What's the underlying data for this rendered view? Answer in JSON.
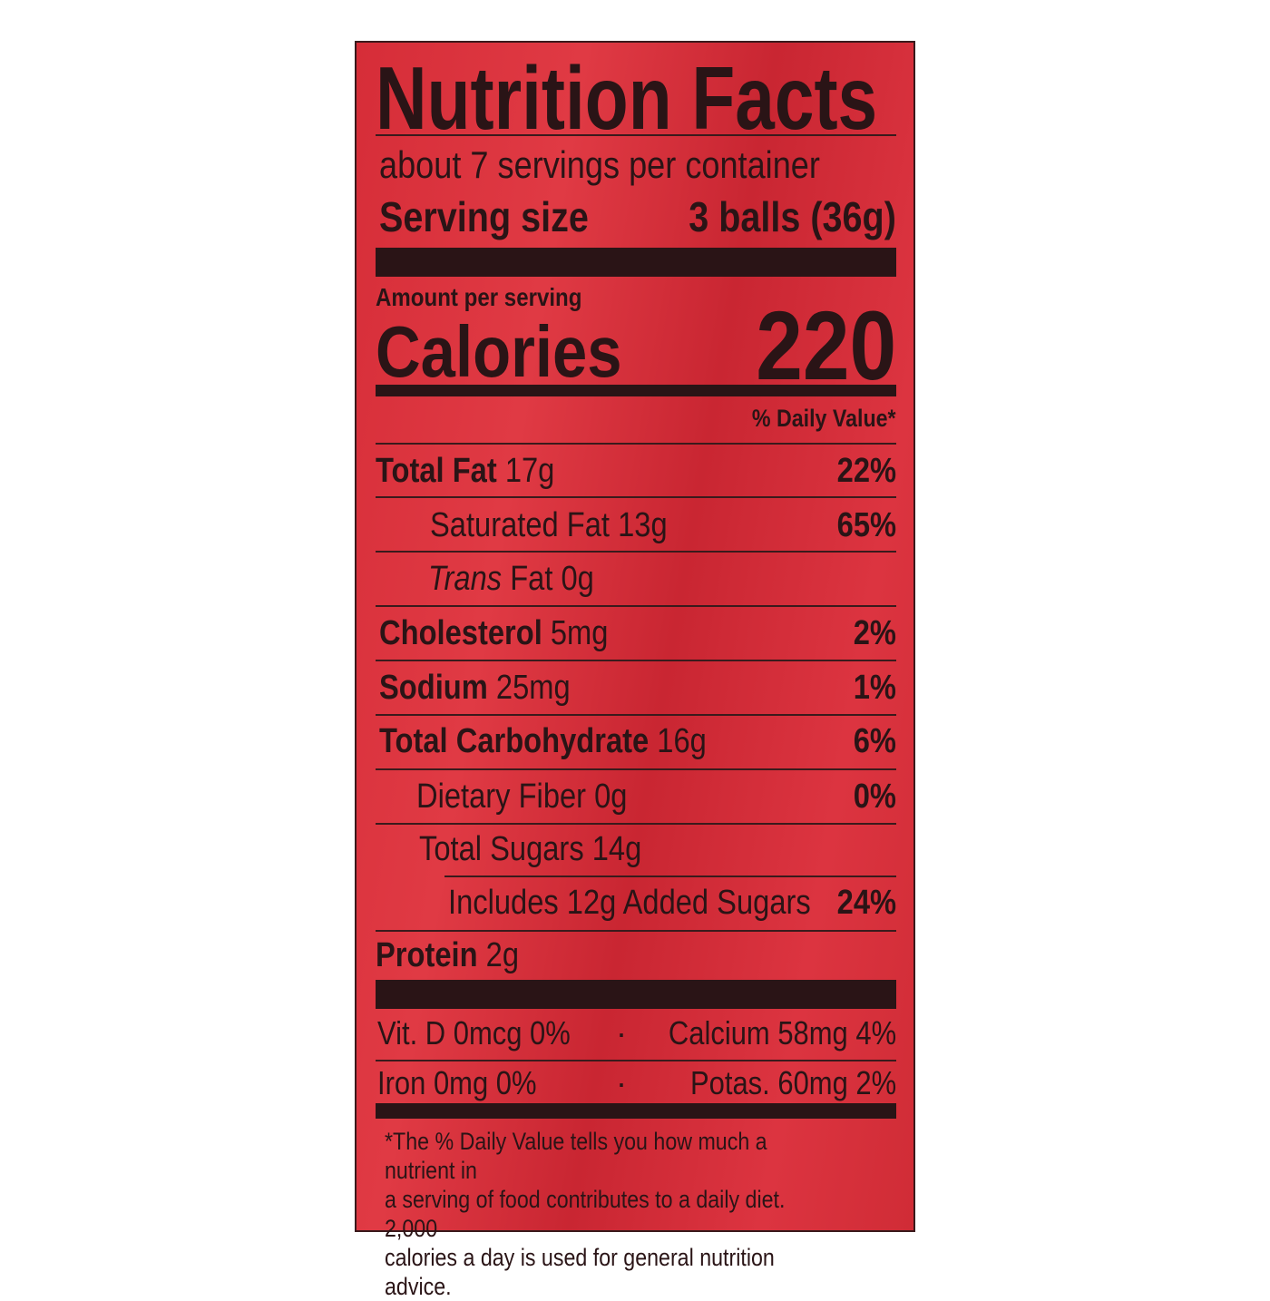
{
  "title": "Nutrition Facts",
  "servings_per_container": "about 7 servings per container",
  "serving_size": {
    "label": "Serving size",
    "value": "3 balls (36g)"
  },
  "amount_per_serving": "Amount per serving",
  "calories": {
    "label": "Calories",
    "value": "220"
  },
  "daily_value_header": "% Daily Value*",
  "nutrients": [
    {
      "name": "Total Fat",
      "amount": "17g",
      "dv": "22%"
    },
    {
      "name": "Saturated Fat",
      "amount": "13g",
      "dv": "65%"
    },
    {
      "name": "Trans",
      "name_suffix": "Fat",
      "amount": "0g",
      "dv": ""
    },
    {
      "name": "Cholesterol",
      "amount": "5mg",
      "dv": "2%"
    },
    {
      "name": "Sodium",
      "amount": "25mg",
      "dv": "1%"
    },
    {
      "name": "Total Carbohydrate",
      "amount": "16g",
      "dv": "6%"
    },
    {
      "name": "Dietary Fiber",
      "amount": "0g",
      "dv": "0%"
    },
    {
      "name": "Total Sugars",
      "amount": "14g",
      "dv": ""
    },
    {
      "name": "Includes 12g Added Sugars",
      "amount": "",
      "dv": "24%"
    },
    {
      "name": "Protein",
      "amount": "2g",
      "dv": ""
    }
  ],
  "micronutrients": [
    {
      "left": "Vit. D 0mcg 0%",
      "right": "Calcium 58mg 4%"
    },
    {
      "left": "Iron 0mg 0%",
      "right": "Potas. 60mg 2%"
    }
  ],
  "separator": "·",
  "footnote": [
    "*The % Daily Value tells you how much a nutrient in",
    "a serving of food contributes to a daily diet. 2,000",
    "calories a day is used for general nutrition advice."
  ],
  "colors": {
    "label_red": "#d62d38",
    "ink": "#2a1416"
  }
}
